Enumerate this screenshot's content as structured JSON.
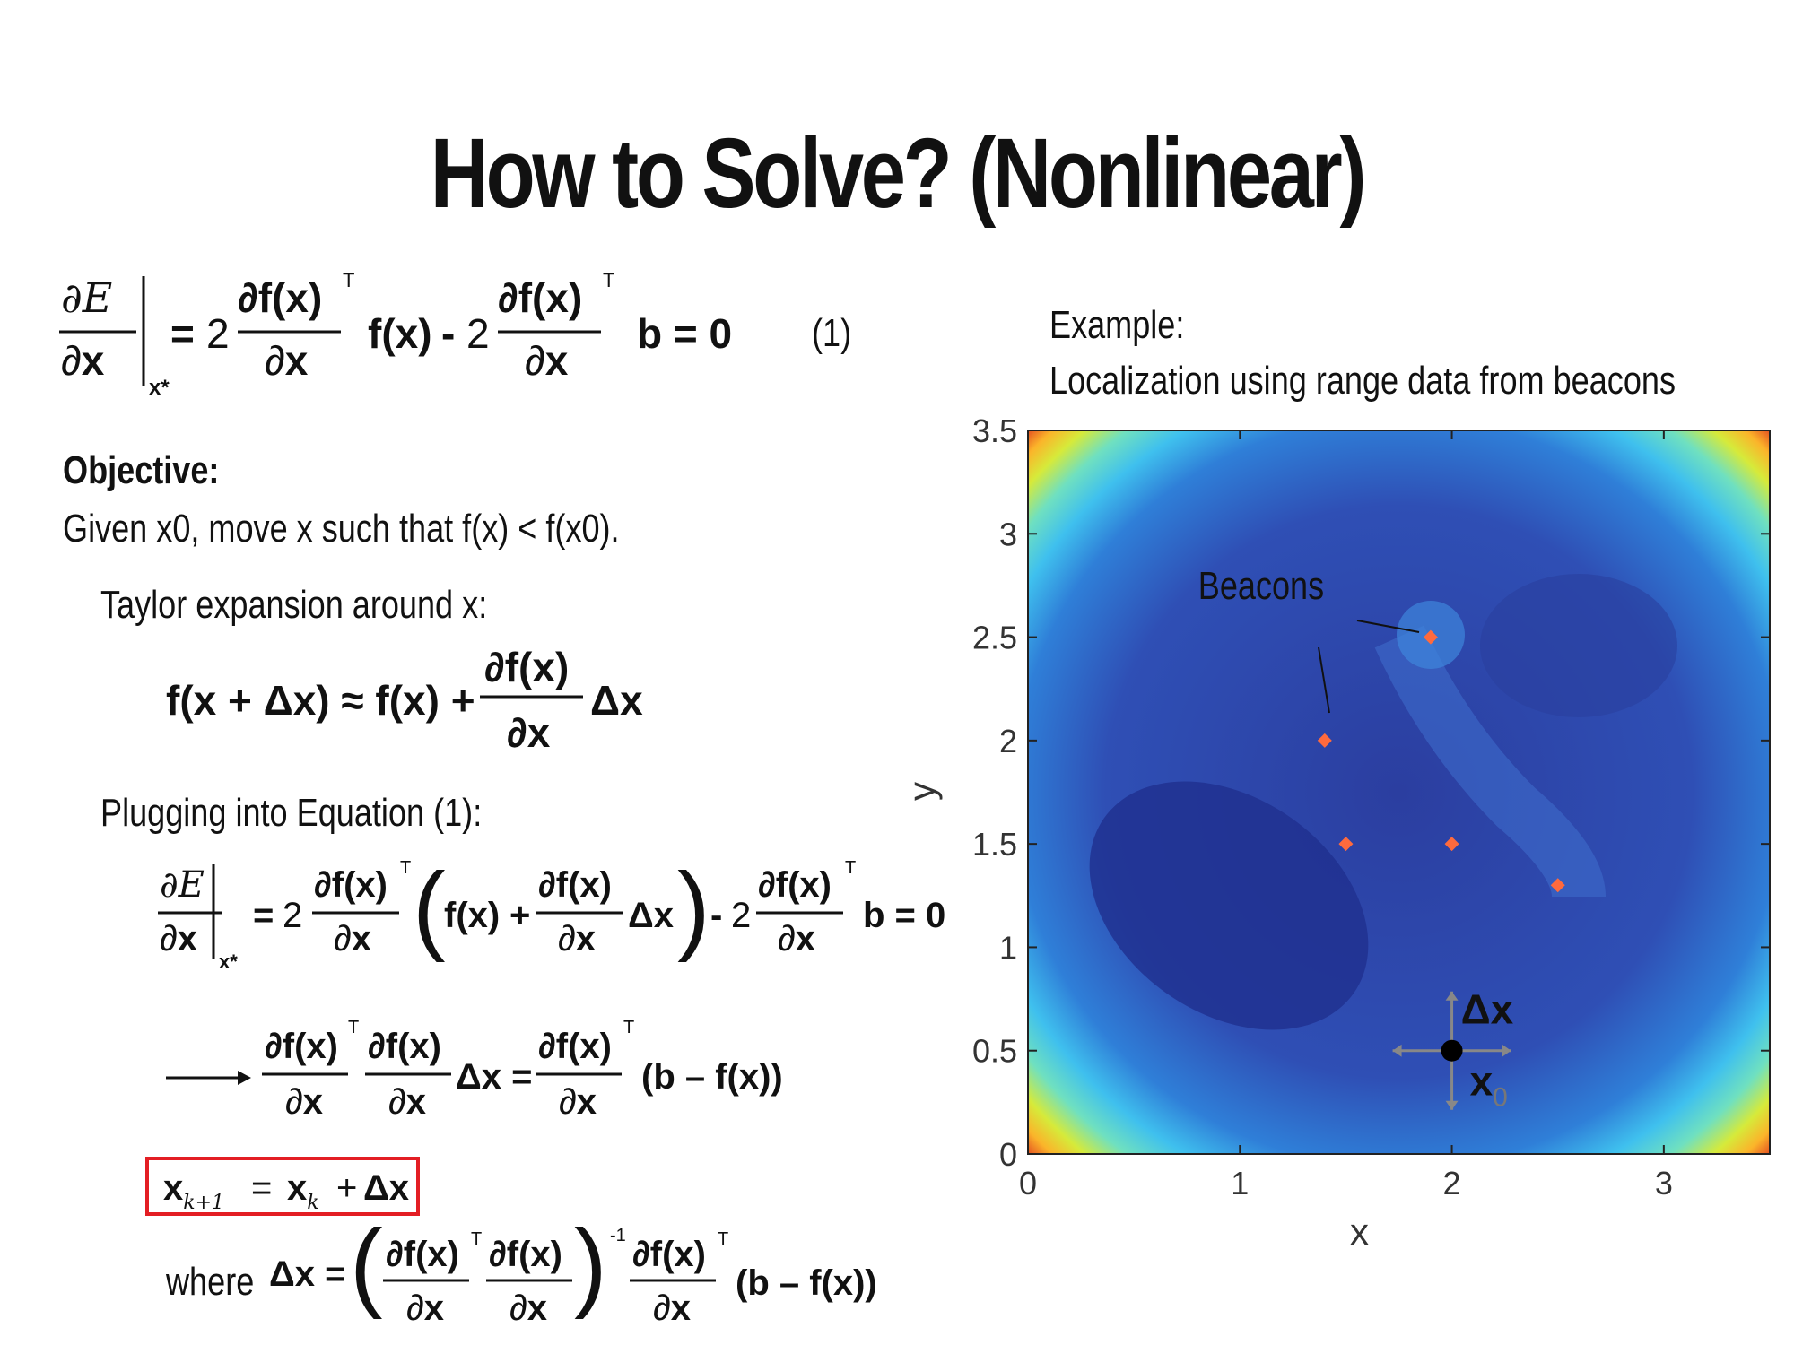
{
  "slide": {
    "title": "How to Solve? (Nonlinear)",
    "eq1_number": "(1)",
    "objective_heading": "Objective:",
    "objective_line": "Given x0, move x such that f(x) < f(x0).",
    "taylor_label": "Taylor expansion around x:",
    "plugging_label": "Plugging into Equation (1):",
    "where_label": "where",
    "example_label": "Example:",
    "example_desc": "Localization using range data from beacons"
  },
  "chart_data": {
    "type": "heatmap",
    "xlabel": "x",
    "ylabel": "y",
    "xlim": [
      0,
      3.5
    ],
    "ylim": [
      0,
      3.5
    ],
    "xticks": [
      "0",
      "1",
      "2",
      "3"
    ],
    "yticks": [
      "0",
      "0.5",
      "1",
      "1.5",
      "2",
      "2.5",
      "3",
      "3.5"
    ],
    "beacons_label": "Beacons",
    "beacons": [
      {
        "x": 1.9,
        "y": 2.5
      },
      {
        "x": 1.4,
        "y": 2.0
      },
      {
        "x": 1.5,
        "y": 1.5
      },
      {
        "x": 2.0,
        "y": 1.5
      },
      {
        "x": 2.5,
        "y": 1.3
      }
    ],
    "start_point": {
      "x": 2.0,
      "y": 0.5
    },
    "start_label": "x0",
    "step_label": "Δx",
    "colors": {
      "beacon": "#ff6a3d",
      "low": "#1f2f8f",
      "high": "#d7191c"
    }
  }
}
